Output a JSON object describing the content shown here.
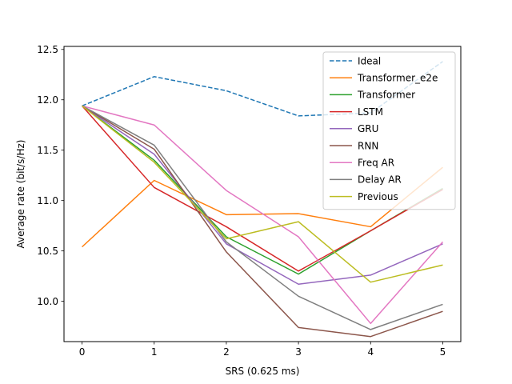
{
  "chart_data": {
    "type": "line",
    "title": "",
    "xlabel": "SRS (0.625 ms)",
    "ylabel": "Average rate (bit/s/Hz)",
    "x": [
      0,
      1,
      2,
      3,
      4,
      5
    ],
    "xlim": [
      -0.25,
      5.25
    ],
    "ylim": [
      9.6,
      12.53
    ],
    "xticks": [
      "0",
      "1",
      "2",
      "3",
      "4",
      "5"
    ],
    "yticks": [
      "10.0",
      "10.5",
      "11.0",
      "11.5",
      "12.0",
      "12.5"
    ],
    "yticks_values": [
      10.0,
      10.5,
      11.0,
      11.5,
      12.0,
      12.5
    ],
    "grid": false,
    "legend_position": "top-right",
    "series": [
      {
        "name": "Ideal",
        "values": [
          11.94,
          12.23,
          12.09,
          11.84,
          11.87,
          12.38
        ],
        "color": "#1f77b4",
        "dashed": true
      },
      {
        "name": "Transformer_e2e",
        "values": [
          10.54,
          11.2,
          10.86,
          10.87,
          10.74,
          11.33
        ],
        "color": "#ff7f0e",
        "dashed": false
      },
      {
        "name": "Transformer",
        "values": [
          11.94,
          11.4,
          10.64,
          10.27,
          10.7,
          11.12
        ],
        "color": "#2ca02c",
        "dashed": false
      },
      {
        "name": "LSTM",
        "values": [
          11.94,
          11.13,
          10.74,
          10.3,
          10.7,
          11.11
        ],
        "color": "#d62728",
        "dashed": false
      },
      {
        "name": "GRU",
        "values": [
          11.94,
          11.46,
          10.57,
          10.17,
          10.26,
          10.57
        ],
        "color": "#9467bd",
        "dashed": false
      },
      {
        "name": "RNN",
        "values": [
          11.94,
          11.51,
          10.49,
          9.74,
          9.65,
          9.9
        ],
        "color": "#8c564b",
        "dashed": false
      },
      {
        "name": "Freq AR",
        "values": [
          11.94,
          11.75,
          11.1,
          10.64,
          9.78,
          10.59
        ],
        "color": "#e377c2",
        "dashed": false
      },
      {
        "name": "Delay AR",
        "values": [
          11.94,
          11.55,
          10.59,
          10.05,
          9.72,
          9.97
        ],
        "color": "#7f7f7f",
        "dashed": false
      },
      {
        "name": "Previous",
        "values": [
          11.94,
          11.38,
          10.62,
          10.79,
          10.19,
          10.36
        ],
        "color": "#bcbd22",
        "dashed": false
      }
    ]
  }
}
